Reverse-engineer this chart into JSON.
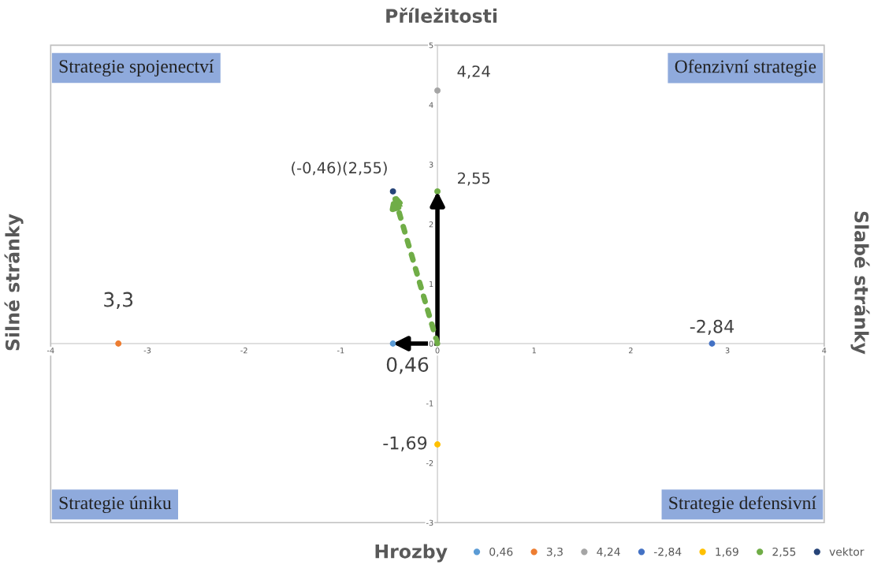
{
  "chart_data": {
    "type": "scatter",
    "title": "Příležitosti",
    "xlabel": "Hrozby",
    "ylabel": "Silné stránky",
    "y2label": "Slabé stránky",
    "xlim": [
      -4,
      4
    ],
    "ylim": [
      -3,
      5
    ],
    "xticks": [
      -4,
      -3,
      -2,
      -1,
      0,
      1,
      2,
      3,
      4
    ],
    "yticks": [
      -3,
      -2,
      -1,
      0,
      1,
      2,
      3,
      4,
      5
    ],
    "marker": "circle",
    "grid": false,
    "legend": "bottom right",
    "series": [
      {
        "name": "0,46",
        "color": "#5b9bd5",
        "x": [
          -0.46
        ],
        "values": [
          0
        ]
      },
      {
        "name": "3,3",
        "color": "#ed7d31",
        "x": [
          -3.3
        ],
        "values": [
          0
        ]
      },
      {
        "name": "4,24",
        "color": "#a5a5a5",
        "x": [
          0
        ],
        "values": [
          4.24
        ]
      },
      {
        "name": "-2,84",
        "color": "#4472c4",
        "x": [
          2.84
        ],
        "values": [
          0
        ]
      },
      {
        "name": "1,69",
        "color": "#ffc000",
        "x": [
          0
        ],
        "values": [
          -1.69
        ]
      },
      {
        "name": "2,55",
        "color": "#70ad47",
        "x": [
          0
        ],
        "values": [
          2.55
        ]
      },
      {
        "name": "vektor",
        "color": "#264478",
        "x": [
          -0.46
        ],
        "values": [
          2.55
        ]
      }
    ],
    "annotations": [
      "Strategie spojenectví",
      "Ofenzivní strategie",
      "Strategie úniku",
      "Strategie defensivní",
      {
        "text": "0,46",
        "x": -0.46,
        "y": 0
      },
      {
        "text": "3,3",
        "x": -3.3,
        "y": 0
      },
      {
        "text": "4,24",
        "x": 0,
        "y": 4.24
      },
      {
        "text": "-2,84",
        "x": 2.84,
        "y": 0
      },
      {
        "text": "-1,69",
        "x": 0,
        "y": -1.69
      },
      {
        "text": "2,55",
        "x": 0,
        "y": 2.55
      },
      {
        "text": "(-0,46)(2,55)",
        "x": -0.46,
        "y": 2.55
      }
    ]
  }
}
